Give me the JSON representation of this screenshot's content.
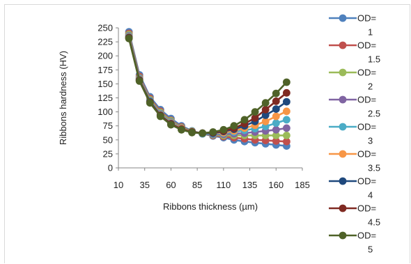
{
  "chart_data": {
    "type": "line",
    "xlabel": "Ribbons thickness (µm)",
    "ylabel": "Ribbons hardness (HV)",
    "xlim": [
      10,
      185
    ],
    "ylim": [
      0,
      250
    ],
    "xticks": [
      10,
      35,
      60,
      85,
      110,
      135,
      160,
      185
    ],
    "yticks": [
      0,
      25,
      50,
      75,
      100,
      125,
      150,
      175,
      200,
      225,
      250
    ],
    "grid": false,
    "legend_position": "right",
    "x": [
      20,
      30,
      40,
      50,
      60,
      70,
      80,
      90,
      100,
      110,
      120,
      130,
      140,
      150,
      160,
      170
    ],
    "series": [
      {
        "name": "OD=\n1",
        "color": "#4f81bd",
        "values": [
          243,
          166,
          127,
          104,
          88,
          75,
          66,
          61,
          57,
          54,
          50,
          47,
          45,
          43,
          41,
          39
        ]
      },
      {
        "name": "OD=\n1.5",
        "color": "#c0504d",
        "values": [
          240,
          163,
          124,
          101,
          85,
          73,
          65,
          61,
          58,
          56,
          54,
          52,
          50,
          49,
          48,
          47
        ]
      },
      {
        "name": "OD=\n2",
        "color": "#9bbb59",
        "values": [
          238,
          161,
          122,
          99,
          84,
          72,
          65,
          61,
          59,
          58,
          58,
          58,
          58,
          58,
          58,
          58
        ]
      },
      {
        "name": "OD=\n2.5",
        "color": "#8064a2",
        "values": [
          236,
          160,
          120,
          97,
          82,
          71,
          64,
          61,
          60,
          60,
          61,
          62,
          64,
          66,
          68,
          71
        ]
      },
      {
        "name": "OD=\n3",
        "color": "#4bacc6",
        "values": [
          235,
          159,
          119,
          96,
          81,
          70,
          64,
          61,
          61,
          62,
          64,
          67,
          70,
          74,
          80,
          86
        ]
      },
      {
        "name": "OD=\n3.5",
        "color": "#f79646",
        "values": [
          234,
          158,
          118,
          95,
          80,
          70,
          64,
          62,
          62,
          63,
          66,
          71,
          76,
          83,
          92,
          101
        ]
      },
      {
        "name": "OD=\n4",
        "color": "#1f497d",
        "values": [
          233,
          157,
          118,
          94,
          79,
          69,
          64,
          62,
          62,
          65,
          69,
          75,
          83,
          94,
          105,
          118
        ]
      },
      {
        "name": "OD=\n4.5",
        "color": "#7f2a22",
        "values": [
          232,
          156,
          117,
          93,
          78,
          69,
          64,
          62,
          63,
          66,
          71,
          79,
          89,
          104,
          119,
          134
        ]
      },
      {
        "name": "OD=\n5",
        "color": "#4f6228",
        "values": [
          231,
          155,
          116,
          92,
          77,
          68,
          63,
          62,
          64,
          68,
          75,
          86,
          100,
          116,
          133,
          153
        ]
      }
    ]
  }
}
